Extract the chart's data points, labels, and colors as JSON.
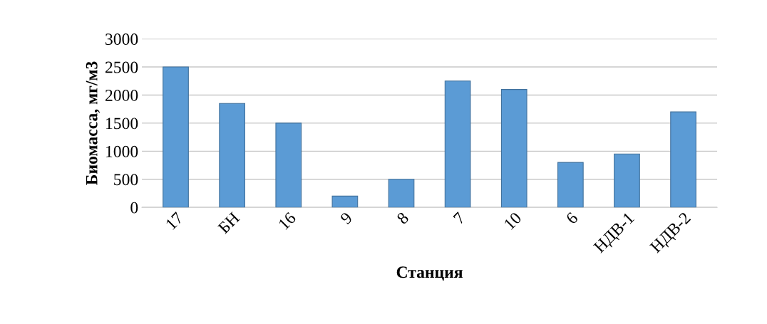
{
  "chart_data": {
    "type": "bar",
    "xlabel": "Станция",
    "ylabel": "Биомасса, мг/м3",
    "categories": [
      "17",
      "БН",
      "16",
      "9",
      "8",
      "7",
      "10",
      "6",
      "НДВ-1",
      "НДВ-2"
    ],
    "values": [
      2500,
      1850,
      1500,
      200,
      500,
      2250,
      2100,
      800,
      950,
      1700
    ],
    "color": "#5b9bd5",
    "ylim": [
      0,
      3000
    ],
    "yticks": [
      0,
      500,
      1000,
      1500,
      2000,
      2500,
      3000
    ],
    "grid": "y"
  }
}
